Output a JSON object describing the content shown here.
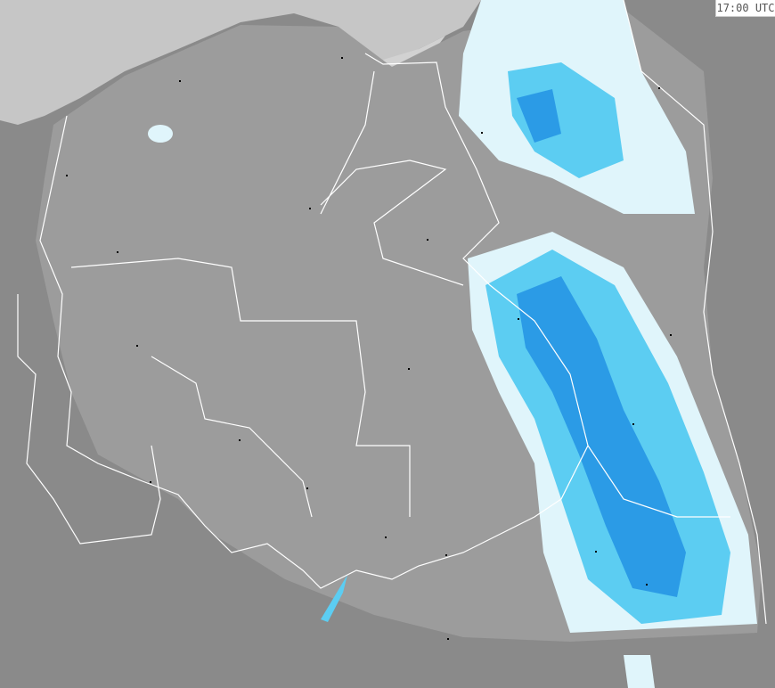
{
  "timestamp": "17:00 UTC",
  "colors": {
    "land_outside": "#8a8a8a",
    "radar_coverage": "#9c9c9c",
    "sea": "#c6c6c6",
    "borders": "#ffffff",
    "precip_light": "#e0f5fb",
    "precip_moderate": "#5ccdf2",
    "precip_heavy": "#2b9be6",
    "city_marker": "#000000"
  },
  "layers": [
    "sea",
    "radar-coverage",
    "precipitation",
    "borders",
    "city-markers"
  ]
}
